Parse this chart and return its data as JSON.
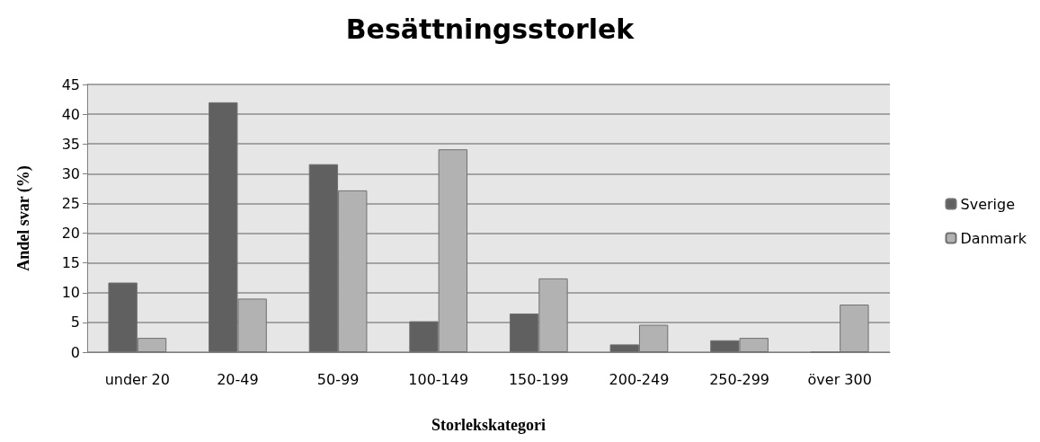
{
  "chart_data": {
    "type": "bar",
    "title": "Besättningsstorlek",
    "xlabel": "Storlekskategori",
    "ylabel": "Andel svar (%)",
    "categories": [
      "under 20",
      "20-49",
      "50-99",
      "100-149",
      "150-199",
      "200-249",
      "250-299",
      "över 300"
    ],
    "series": [
      {
        "name": "Sverige",
        "color": "#606060",
        "values": [
          11.7,
          42.0,
          31.6,
          5.2,
          6.5,
          1.3,
          2.0,
          0
        ]
      },
      {
        "name": "Danmark",
        "color": "#b2b2b2",
        "values": [
          2.4,
          9.0,
          27.2,
          34.1,
          12.4,
          4.6,
          2.4,
          8.0
        ]
      }
    ],
    "ylim": [
      0,
      45
    ],
    "yticks": [
      0,
      5,
      10,
      15,
      20,
      25,
      30,
      35,
      40,
      45
    ],
    "grid": "y",
    "legend": "right"
  }
}
